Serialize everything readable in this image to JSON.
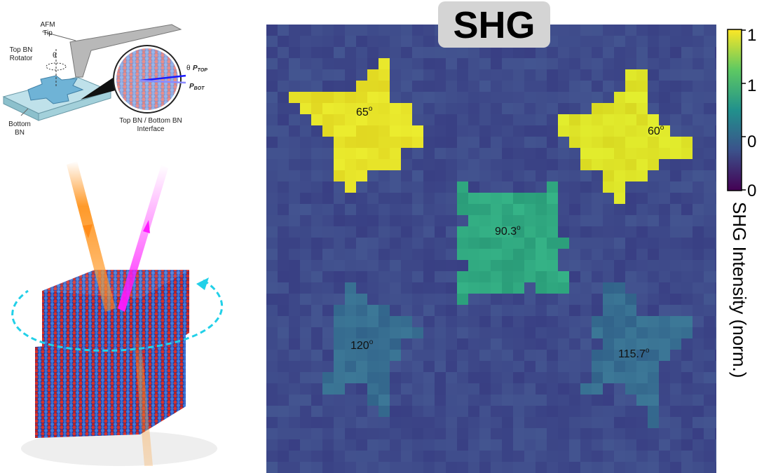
{
  "schematic": {
    "afm_tip": [
      "AFM",
      "Tip"
    ],
    "top_bn_rotator": [
      "Top BN",
      "Rotator"
    ],
    "rotation_angle": "θ",
    "bottom_bn": [
      "Bottom",
      "BN"
    ],
    "interface": [
      "Top BN / Bottom BN",
      "Interface"
    ],
    "polarization_angle": "θ",
    "p_top": {
      "symbol": "P",
      "subscript": "TOP"
    },
    "p_bot": {
      "symbol": "P",
      "subscript": "BOT"
    }
  },
  "shg_map": {
    "title": "SHG",
    "angles": [
      {
        "value": "65",
        "degree": "o"
      },
      {
        "value": "60",
        "degree": "o"
      },
      {
        "value": "90.3",
        "degree": "o"
      },
      {
        "value": "120",
        "degree": "o"
      },
      {
        "value": "115.7",
        "degree": "o"
      }
    ],
    "colorbar": {
      "ticks": [
        "1",
        "1",
        "0",
        "0"
      ],
      "label": "SHG Intensity (norm.)"
    }
  }
}
